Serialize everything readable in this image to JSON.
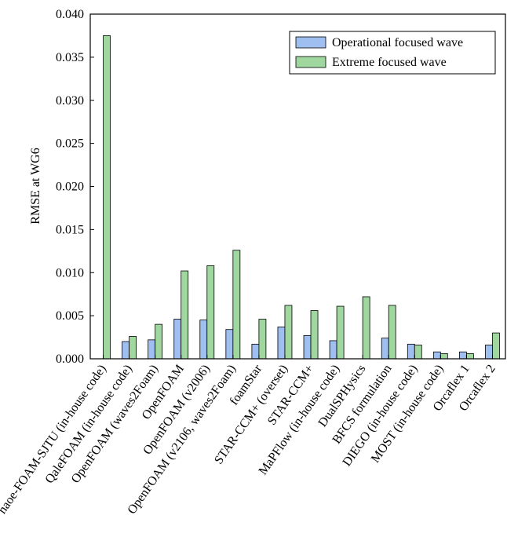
{
  "chart_data": {
    "type": "bar",
    "y_label": "RMSE at WG6",
    "categories": [
      "naoe-FOAM-SJTU (in-house code)",
      "QaleFOAM (in-house code)",
      "OpenFOAM (waves2Foam)",
      "OpenFOAM",
      "OpenFOAM (v2006)",
      "OpenFOAM (v2106, waves2Foam)",
      "foamStar",
      "STAR-CCM+ (overset)",
      "STAR-CCM+",
      "MaPFlow (in-house code)",
      "DualSPHysics",
      "BFCS formulation",
      "DIEGO (in-house code)",
      "MOST (in-house code)",
      "Orcaflex 1",
      "Orcaflex 2"
    ],
    "series": [
      {
        "name": "Operational focused wave",
        "color": "#9ebff0",
        "values": [
          null,
          0.002,
          0.0022,
          0.0046,
          0.0045,
          0.0034,
          0.0017,
          0.0037,
          0.0027,
          0.0021,
          null,
          0.0024,
          0.0017,
          0.0008,
          0.0008,
          0.0016
        ]
      },
      {
        "name": "Extreme focused wave",
        "color": "#9fd79f",
        "values": [
          0.0375,
          0.0026,
          0.004,
          0.0102,
          0.0108,
          0.0126,
          0.0046,
          0.0062,
          0.0056,
          0.0061,
          0.0072,
          0.0062,
          0.0016,
          0.0006,
          0.0006,
          0.003
        ]
      }
    ],
    "ylim": [
      0,
      0.04
    ],
    "yticks": [
      {
        "value": 0,
        "label": "0.000"
      },
      {
        "value": 0.005,
        "label": "0.005"
      },
      {
        "value": 0.01,
        "label": "0.010"
      },
      {
        "value": 0.015,
        "label": "0.015"
      },
      {
        "value": 0.02,
        "label": "0.020"
      },
      {
        "value": 0.025,
        "label": "0.025"
      },
      {
        "value": 0.03,
        "label": "0.030"
      },
      {
        "value": 0.035,
        "label": "0.035"
      },
      {
        "value": 0.04,
        "label": "0.040"
      }
    ],
    "legend": "top-right"
  }
}
